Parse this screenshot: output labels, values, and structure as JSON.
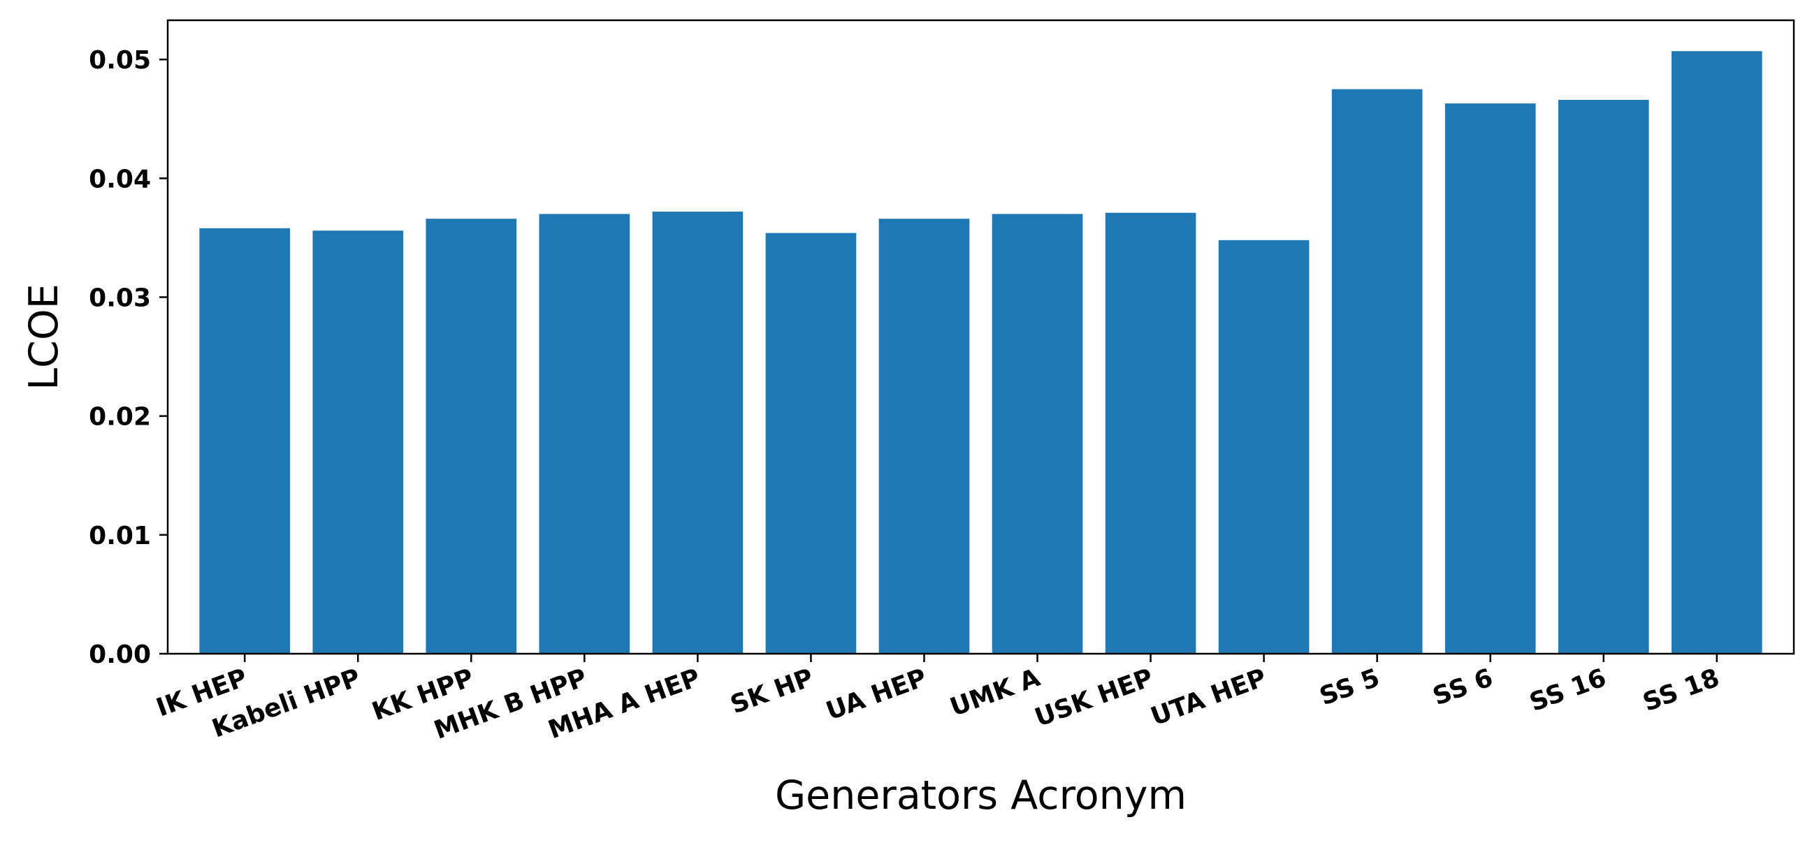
{
  "chart_data": {
    "type": "bar",
    "title": "",
    "xlabel": "Generators Acronym",
    "ylabel": "LCOE",
    "categories": [
      "IK HEP",
      "Kabeli HPP",
      "KK HPP",
      "MHK B HPP",
      "MHA A HEP",
      "SK HP",
      "UA HEP",
      "UMK A",
      "USK HEP",
      "UTA HEP",
      "SS 5",
      "SS 6",
      "SS 16",
      "SS 18"
    ],
    "values": [
      0.0358,
      0.0356,
      0.0366,
      0.037,
      0.0372,
      0.0354,
      0.0366,
      0.037,
      0.0371,
      0.0348,
      0.0475,
      0.0463,
      0.0466,
      0.0507
    ],
    "ylim": [
      0,
      0.0533
    ],
    "yticks": [
      "0.00",
      "0.01",
      "0.02",
      "0.03",
      "0.04",
      "0.05"
    ],
    "bar_color": "#1f77b4",
    "grid": false,
    "legend": "none"
  }
}
